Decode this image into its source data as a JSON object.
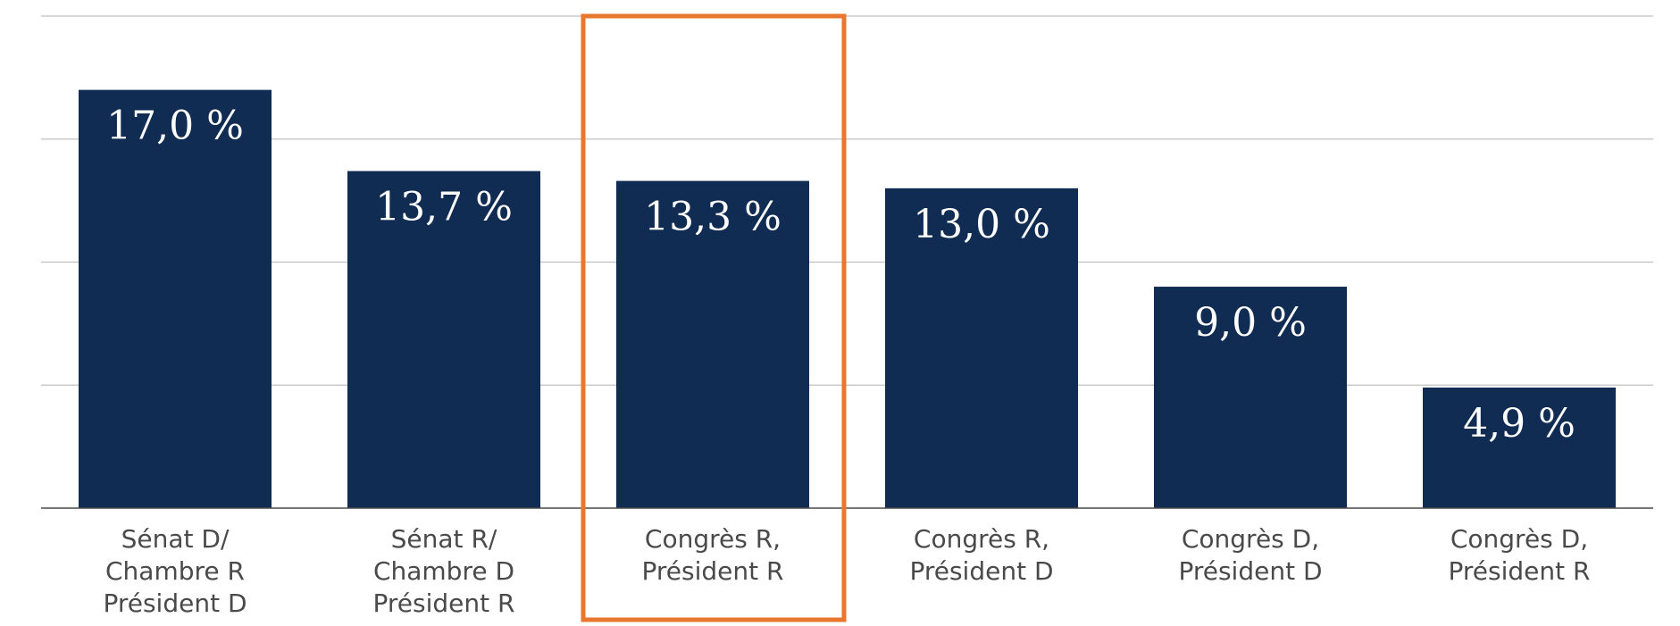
{
  "chart_data": {
    "type": "bar",
    "categories": [
      [
        "Sénat D/",
        "Chambre R",
        "Président D"
      ],
      [
        "Sénat R/",
        "Chambre D",
        "Président R"
      ],
      [
        "Congrès R,",
        "Président R"
      ],
      [
        "Congrès R,",
        "Président D"
      ],
      [
        "Congrès D,",
        "Président D"
      ],
      [
        "Congrès D,",
        "Président R"
      ]
    ],
    "values": [
      17.0,
      13.7,
      13.3,
      13.0,
      9.0,
      4.9
    ],
    "value_labels": [
      "17,0 %",
      "13,7 %",
      "13,3 %",
      "13,0 %",
      "9,0 %",
      "4,9 %"
    ],
    "ylim": [
      0,
      20
    ],
    "grid": true,
    "highlighted_category_index": 2,
    "title": "",
    "xlabel": "",
    "ylabel": ""
  },
  "colors": {
    "bar": "#102c52",
    "highlight": "#e8762d",
    "grid": "#bfbfbf",
    "axis": "#4a4a4a",
    "label": "#4a4a4a"
  }
}
